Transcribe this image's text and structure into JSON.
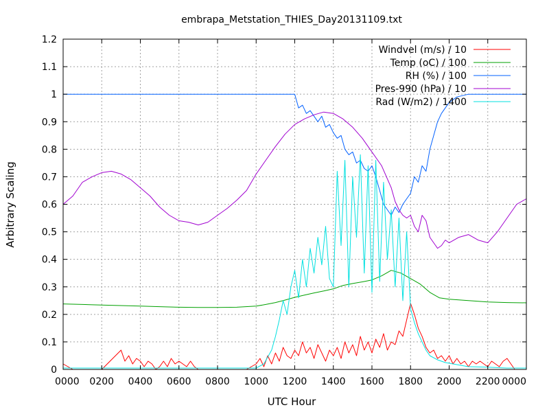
{
  "chart_data": {
    "type": "line",
    "title": "embrapa_Metstation_THIES_Day20131109.txt",
    "xlabel": "UTC Hour",
    "ylabel": "Arbitrary Scaling",
    "xlim": [
      0,
      24
    ],
    "ylim": [
      0,
      1.2
    ],
    "x_ticks": [
      "0000",
      "0200",
      "0400",
      "0600",
      "0800",
      "1000",
      "1200",
      "1400",
      "1600",
      "1800",
      "2000",
      "2200",
      "0000"
    ],
    "y_ticks": [
      "0",
      "0.1",
      "0.2",
      "0.3",
      "0.4",
      "0.5",
      "0.6",
      "0.7",
      "0.8",
      "0.9",
      "1",
      "1.1",
      "1.2"
    ],
    "grid": true,
    "legend_position": "top-right",
    "series": [
      {
        "name": "Windvel (m/s) / 10",
        "color": "#ff0000",
        "x": [
          0,
          0.5,
          1.0,
          2.0,
          3.0,
          3.2,
          3.4,
          3.6,
          3.8,
          4.0,
          4.2,
          4.4,
          4.6,
          4.8,
          5.0,
          5.2,
          5.4,
          5.6,
          5.8,
          6.0,
          6.2,
          6.4,
          6.6,
          6.8,
          7.0,
          7.5,
          8.0,
          8.5,
          9.0,
          9.5,
          10.0,
          10.2,
          10.4,
          10.6,
          10.8,
          11.0,
          11.2,
          11.4,
          11.6,
          11.8,
          12.0,
          12.2,
          12.4,
          12.6,
          12.8,
          13.0,
          13.2,
          13.4,
          13.6,
          13.8,
          14.0,
          14.2,
          14.4,
          14.6,
          14.8,
          15.0,
          15.2,
          15.4,
          15.6,
          15.8,
          16.0,
          16.2,
          16.4,
          16.6,
          16.8,
          17.0,
          17.2,
          17.4,
          17.6,
          17.8,
          18.0,
          18.2,
          18.4,
          18.6,
          18.8,
          19.0,
          19.2,
          19.4,
          19.6,
          19.8,
          20.0,
          20.2,
          20.4,
          20.6,
          20.8,
          21.0,
          21.2,
          21.4,
          21.6,
          21.8,
          22.0,
          22.2,
          22.4,
          22.6,
          22.8,
          23.0,
          23.2,
          23.4,
          23.6,
          24.0
        ],
        "values": [
          0.02,
          0,
          0,
          0,
          0.07,
          0.03,
          0.05,
          0.02,
          0.04,
          0.03,
          0.01,
          0.03,
          0.02,
          0,
          0.01,
          0.03,
          0.01,
          0.04,
          0.02,
          0.03,
          0.02,
          0.01,
          0.03,
          0.01,
          0,
          0,
          0,
          0,
          0,
          0,
          0.02,
          0.04,
          0.01,
          0.05,
          0.02,
          0.06,
          0.03,
          0.08,
          0.05,
          0.04,
          0.07,
          0.05,
          0.1,
          0.06,
          0.08,
          0.04,
          0.09,
          0.06,
          0.03,
          0.07,
          0.05,
          0.08,
          0.04,
          0.1,
          0.06,
          0.09,
          0.05,
          0.12,
          0.07,
          0.1,
          0.06,
          0.11,
          0.08,
          0.13,
          0.07,
          0.1,
          0.09,
          0.14,
          0.12,
          0.18,
          0.24,
          0.2,
          0.15,
          0.12,
          0.08,
          0.06,
          0.07,
          0.04,
          0.05,
          0.03,
          0.05,
          0.02,
          0.04,
          0.02,
          0.03,
          0.01,
          0.03,
          0.02,
          0.03,
          0.02,
          0.01,
          0.03,
          0.02,
          0.01,
          0.03,
          0.04,
          0.02,
          0,
          0,
          0
        ]
      },
      {
        "name": "Temp (oC) / 100",
        "color": "#00a000",
        "x": [
          0,
          1,
          2,
          3,
          4,
          5,
          6,
          7,
          8,
          9,
          10,
          10.5,
          11,
          11.5,
          12,
          12.5,
          13,
          13.5,
          14,
          14.5,
          15,
          15.5,
          16,
          16.5,
          17,
          17.5,
          18,
          18.5,
          19,
          19.5,
          20,
          21,
          22,
          23,
          24
        ],
        "values": [
          0.238,
          0.236,
          0.234,
          0.232,
          0.23,
          0.228,
          0.226,
          0.225,
          0.225,
          0.226,
          0.23,
          0.236,
          0.243,
          0.252,
          0.262,
          0.27,
          0.278,
          0.285,
          0.293,
          0.305,
          0.312,
          0.318,
          0.325,
          0.34,
          0.36,
          0.35,
          0.33,
          0.31,
          0.28,
          0.26,
          0.255,
          0.25,
          0.245,
          0.243,
          0.242
        ]
      },
      {
        "name": "RH (%) / 100",
        "color": "#0060ff",
        "x": [
          0,
          4,
          8,
          12,
          12.2,
          12.4,
          12.6,
          12.8,
          13.0,
          13.2,
          13.4,
          13.6,
          13.8,
          14.0,
          14.2,
          14.4,
          14.6,
          14.8,
          15.0,
          15.2,
          15.4,
          15.6,
          15.8,
          16.0,
          16.2,
          16.4,
          16.6,
          16.8,
          17.0,
          17.2,
          17.4,
          17.6,
          17.8,
          18.0,
          18.2,
          18.4,
          18.6,
          18.8,
          19.0,
          19.2,
          19.4,
          19.6,
          19.8,
          20.0,
          20.4,
          21,
          22,
          23,
          24
        ],
        "values": [
          1.0,
          1.0,
          1.0,
          1.0,
          0.95,
          0.96,
          0.93,
          0.94,
          0.92,
          0.9,
          0.92,
          0.88,
          0.89,
          0.86,
          0.84,
          0.85,
          0.8,
          0.78,
          0.79,
          0.75,
          0.76,
          0.73,
          0.72,
          0.74,
          0.7,
          0.65,
          0.6,
          0.58,
          0.56,
          0.59,
          0.57,
          0.6,
          0.62,
          0.64,
          0.7,
          0.68,
          0.74,
          0.72,
          0.8,
          0.85,
          0.9,
          0.93,
          0.95,
          0.97,
          0.99,
          1.0,
          1.0,
          1.0,
          1.0
        ]
      },
      {
        "name": "Pres-990 (hPa) / 10",
        "color": "#a000d0",
        "x": [
          0,
          0.5,
          1.0,
          1.5,
          2.0,
          2.5,
          3.0,
          3.5,
          4.0,
          4.5,
          5.0,
          5.5,
          6.0,
          6.5,
          7.0,
          7.5,
          8.0,
          8.5,
          9.0,
          9.5,
          10.0,
          10.5,
          11.0,
          11.5,
          12.0,
          12.5,
          13.0,
          13.5,
          14.0,
          14.5,
          15.0,
          15.5,
          16.0,
          16.5,
          17.0,
          17.2,
          17.4,
          17.6,
          17.8,
          18.0,
          18.2,
          18.4,
          18.6,
          18.8,
          19.0,
          19.2,
          19.4,
          19.6,
          19.8,
          20.0,
          20.5,
          21.0,
          21.5,
          22.0,
          22.5,
          23.0,
          23.5,
          24.0
        ],
        "values": [
          0.6,
          0.63,
          0.68,
          0.7,
          0.715,
          0.72,
          0.71,
          0.69,
          0.66,
          0.63,
          0.59,
          0.56,
          0.54,
          0.535,
          0.525,
          0.535,
          0.56,
          0.585,
          0.615,
          0.65,
          0.71,
          0.76,
          0.81,
          0.855,
          0.89,
          0.91,
          0.925,
          0.935,
          0.93,
          0.91,
          0.88,
          0.84,
          0.79,
          0.74,
          0.66,
          0.61,
          0.58,
          0.56,
          0.55,
          0.56,
          0.52,
          0.5,
          0.56,
          0.54,
          0.48,
          0.46,
          0.44,
          0.45,
          0.47,
          0.46,
          0.48,
          0.49,
          0.47,
          0.46,
          0.5,
          0.55,
          0.6,
          0.62
        ]
      },
      {
        "name": "Rad (W/m2) / 1400",
        "color": "#00e0e0",
        "x": [
          0,
          5,
          10.0,
          10.4,
          10.8,
          11.0,
          11.2,
          11.4,
          11.6,
          11.8,
          12.0,
          12.2,
          12.4,
          12.6,
          12.8,
          13.0,
          13.2,
          13.4,
          13.6,
          13.8,
          14.0,
          14.2,
          14.4,
          14.6,
          14.8,
          15.0,
          15.2,
          15.4,
          15.6,
          15.8,
          16.0,
          16.2,
          16.4,
          16.6,
          16.8,
          17.0,
          17.2,
          17.4,
          17.6,
          17.8,
          18.0,
          18.2,
          18.4,
          18.6,
          18.8,
          19.0,
          19.4,
          19.8,
          20.2,
          20.6,
          21,
          22,
          23,
          24
        ],
        "values": [
          0.005,
          0.005,
          0.005,
          0.02,
          0.07,
          0.12,
          0.18,
          0.25,
          0.2,
          0.3,
          0.36,
          0.26,
          0.4,
          0.3,
          0.44,
          0.35,
          0.48,
          0.38,
          0.52,
          0.33,
          0.3,
          0.72,
          0.45,
          0.76,
          0.3,
          0.7,
          0.48,
          0.78,
          0.35,
          0.74,
          0.28,
          0.76,
          0.32,
          0.68,
          0.4,
          0.58,
          0.3,
          0.55,
          0.25,
          0.5,
          0.22,
          0.17,
          0.13,
          0.1,
          0.07,
          0.05,
          0.035,
          0.025,
          0.02,
          0.015,
          0.01,
          0.008,
          0.005,
          0.005
        ]
      }
    ]
  }
}
